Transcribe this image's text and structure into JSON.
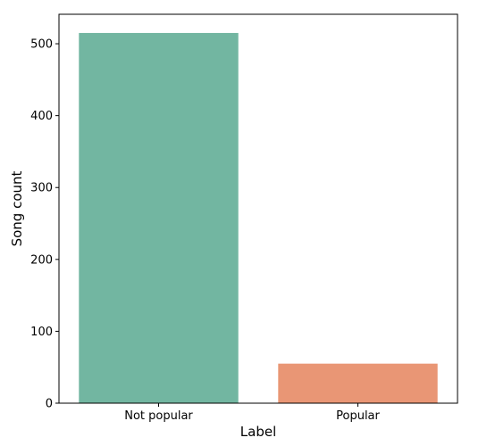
{
  "chart_data": {
    "type": "bar",
    "categories": [
      "Not popular",
      "Popular"
    ],
    "values": [
      515,
      55
    ],
    "colors": [
      "#72b6a1",
      "#e99675"
    ],
    "xlabel": "Label",
    "ylabel": "Song count",
    "ylim": [
      0,
      541
    ],
    "yticks": [
      0,
      100,
      200,
      300,
      400,
      500
    ],
    "ytick_labels": [
      "0",
      "100",
      "200",
      "300",
      "400",
      "500"
    ],
    "grid": false,
    "legend": "none"
  }
}
